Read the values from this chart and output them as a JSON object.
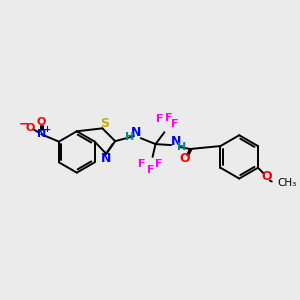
{
  "background_color": "#ebebeb",
  "colors": {
    "N": "#0000ff",
    "O": "#ff0000",
    "S": "#ccaa00",
    "F": "#ff00ff",
    "C": "#000000",
    "H": "#008b8b",
    "bond": "#000000"
  },
  "figsize": [
    3.0,
    3.0
  ],
  "dpi": 100
}
